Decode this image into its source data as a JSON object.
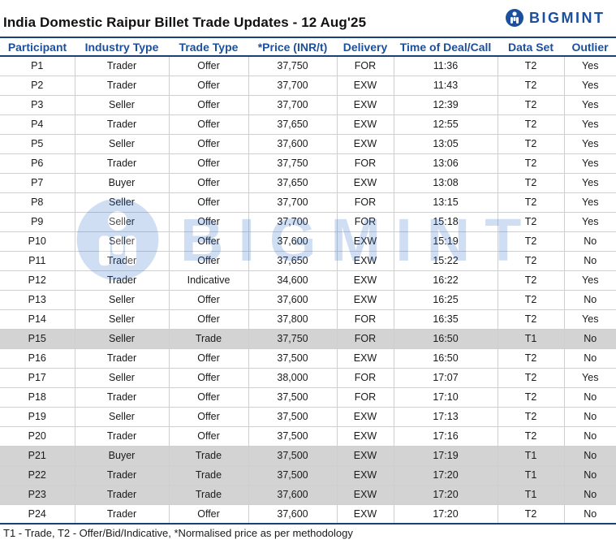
{
  "title": "India Domestic Raipur Billet Trade Updates - 12 Aug'25",
  "logo_text": "BIGMINT",
  "watermark_text": "BIGMINT",
  "columns": [
    "Participant",
    "Industry Type",
    "Trade Type",
    "*Price (INR/t)",
    "Delivery",
    "Time of Deal/Call",
    "Data Set",
    "Outlier"
  ],
  "rows": [
    [
      "P1",
      "Trader",
      "Offer",
      "37,750",
      "FOR",
      "11:36",
      "T2",
      "Yes"
    ],
    [
      "P2",
      "Trader",
      "Offer",
      "37,700",
      "EXW",
      "11:43",
      "T2",
      "Yes"
    ],
    [
      "P3",
      "Seller",
      "Offer",
      "37,700",
      "EXW",
      "12:39",
      "T2",
      "Yes"
    ],
    [
      "P4",
      "Trader",
      "Offer",
      "37,650",
      "EXW",
      "12:55",
      "T2",
      "Yes"
    ],
    [
      "P5",
      "Seller",
      "Offer",
      "37,600",
      "EXW",
      "13:05",
      "T2",
      "Yes"
    ],
    [
      "P6",
      "Trader",
      "Offer",
      "37,750",
      "FOR",
      "13:06",
      "T2",
      "Yes"
    ],
    [
      "P7",
      "Buyer",
      "Offer",
      "37,650",
      "EXW",
      "13:08",
      "T2",
      "Yes"
    ],
    [
      "P8",
      "Seller",
      "Offer",
      "37,700",
      "FOR",
      "13:15",
      "T2",
      "Yes"
    ],
    [
      "P9",
      "Seller",
      "Offer",
      "37,700",
      "FOR",
      "15:18",
      "T2",
      "Yes"
    ],
    [
      "P10",
      "Seller",
      "Offer",
      "37,600",
      "EXW",
      "15:19",
      "T2",
      "No"
    ],
    [
      "P11",
      "Trader",
      "Offer",
      "37,650",
      "EXW",
      "15:22",
      "T2",
      "No"
    ],
    [
      "P12",
      "Trader",
      "Indicative",
      "34,600",
      "EXW",
      "16:22",
      "T2",
      "Yes"
    ],
    [
      "P13",
      "Seller",
      "Offer",
      "37,600",
      "EXW",
      "16:25",
      "T2",
      "No"
    ],
    [
      "P14",
      "Seller",
      "Offer",
      "37,800",
      "FOR",
      "16:35",
      "T2",
      "Yes"
    ],
    [
      "P15",
      "Seller",
      "Trade",
      "37,750",
      "FOR",
      "16:50",
      "T1",
      "No"
    ],
    [
      "P16",
      "Trader",
      "Offer",
      "37,500",
      "EXW",
      "16:50",
      "T2",
      "No"
    ],
    [
      "P17",
      "Seller",
      "Offer",
      "38,000",
      "FOR",
      "17:07",
      "T2",
      "Yes"
    ],
    [
      "P18",
      "Trader",
      "Offer",
      "37,500",
      "FOR",
      "17:10",
      "T2",
      "No"
    ],
    [
      "P19",
      "Seller",
      "Offer",
      "37,500",
      "EXW",
      "17:13",
      "T2",
      "No"
    ],
    [
      "P20",
      "Trader",
      "Offer",
      "37,500",
      "EXW",
      "17:16",
      "T2",
      "No"
    ],
    [
      "P21",
      "Buyer",
      "Trade",
      "37,500",
      "EXW",
      "17:19",
      "T1",
      "No"
    ],
    [
      "P22",
      "Trader",
      "Trade",
      "37,500",
      "EXW",
      "17:20",
      "T1",
      "No"
    ],
    [
      "P23",
      "Trader",
      "Trade",
      "37,600",
      "EXW",
      "17:20",
      "T1",
      "No"
    ],
    [
      "P24",
      "Trader",
      "Offer",
      "37,600",
      "EXW",
      "17:20",
      "T2",
      "No"
    ]
  ],
  "footnote": "T1 - Trade, T2 - Offer/Bid/Indicative, *Normalised price as per methodology",
  "colors": {
    "accent": "#1c4f9c",
    "trade_row_bg": "#d3d3d3"
  }
}
